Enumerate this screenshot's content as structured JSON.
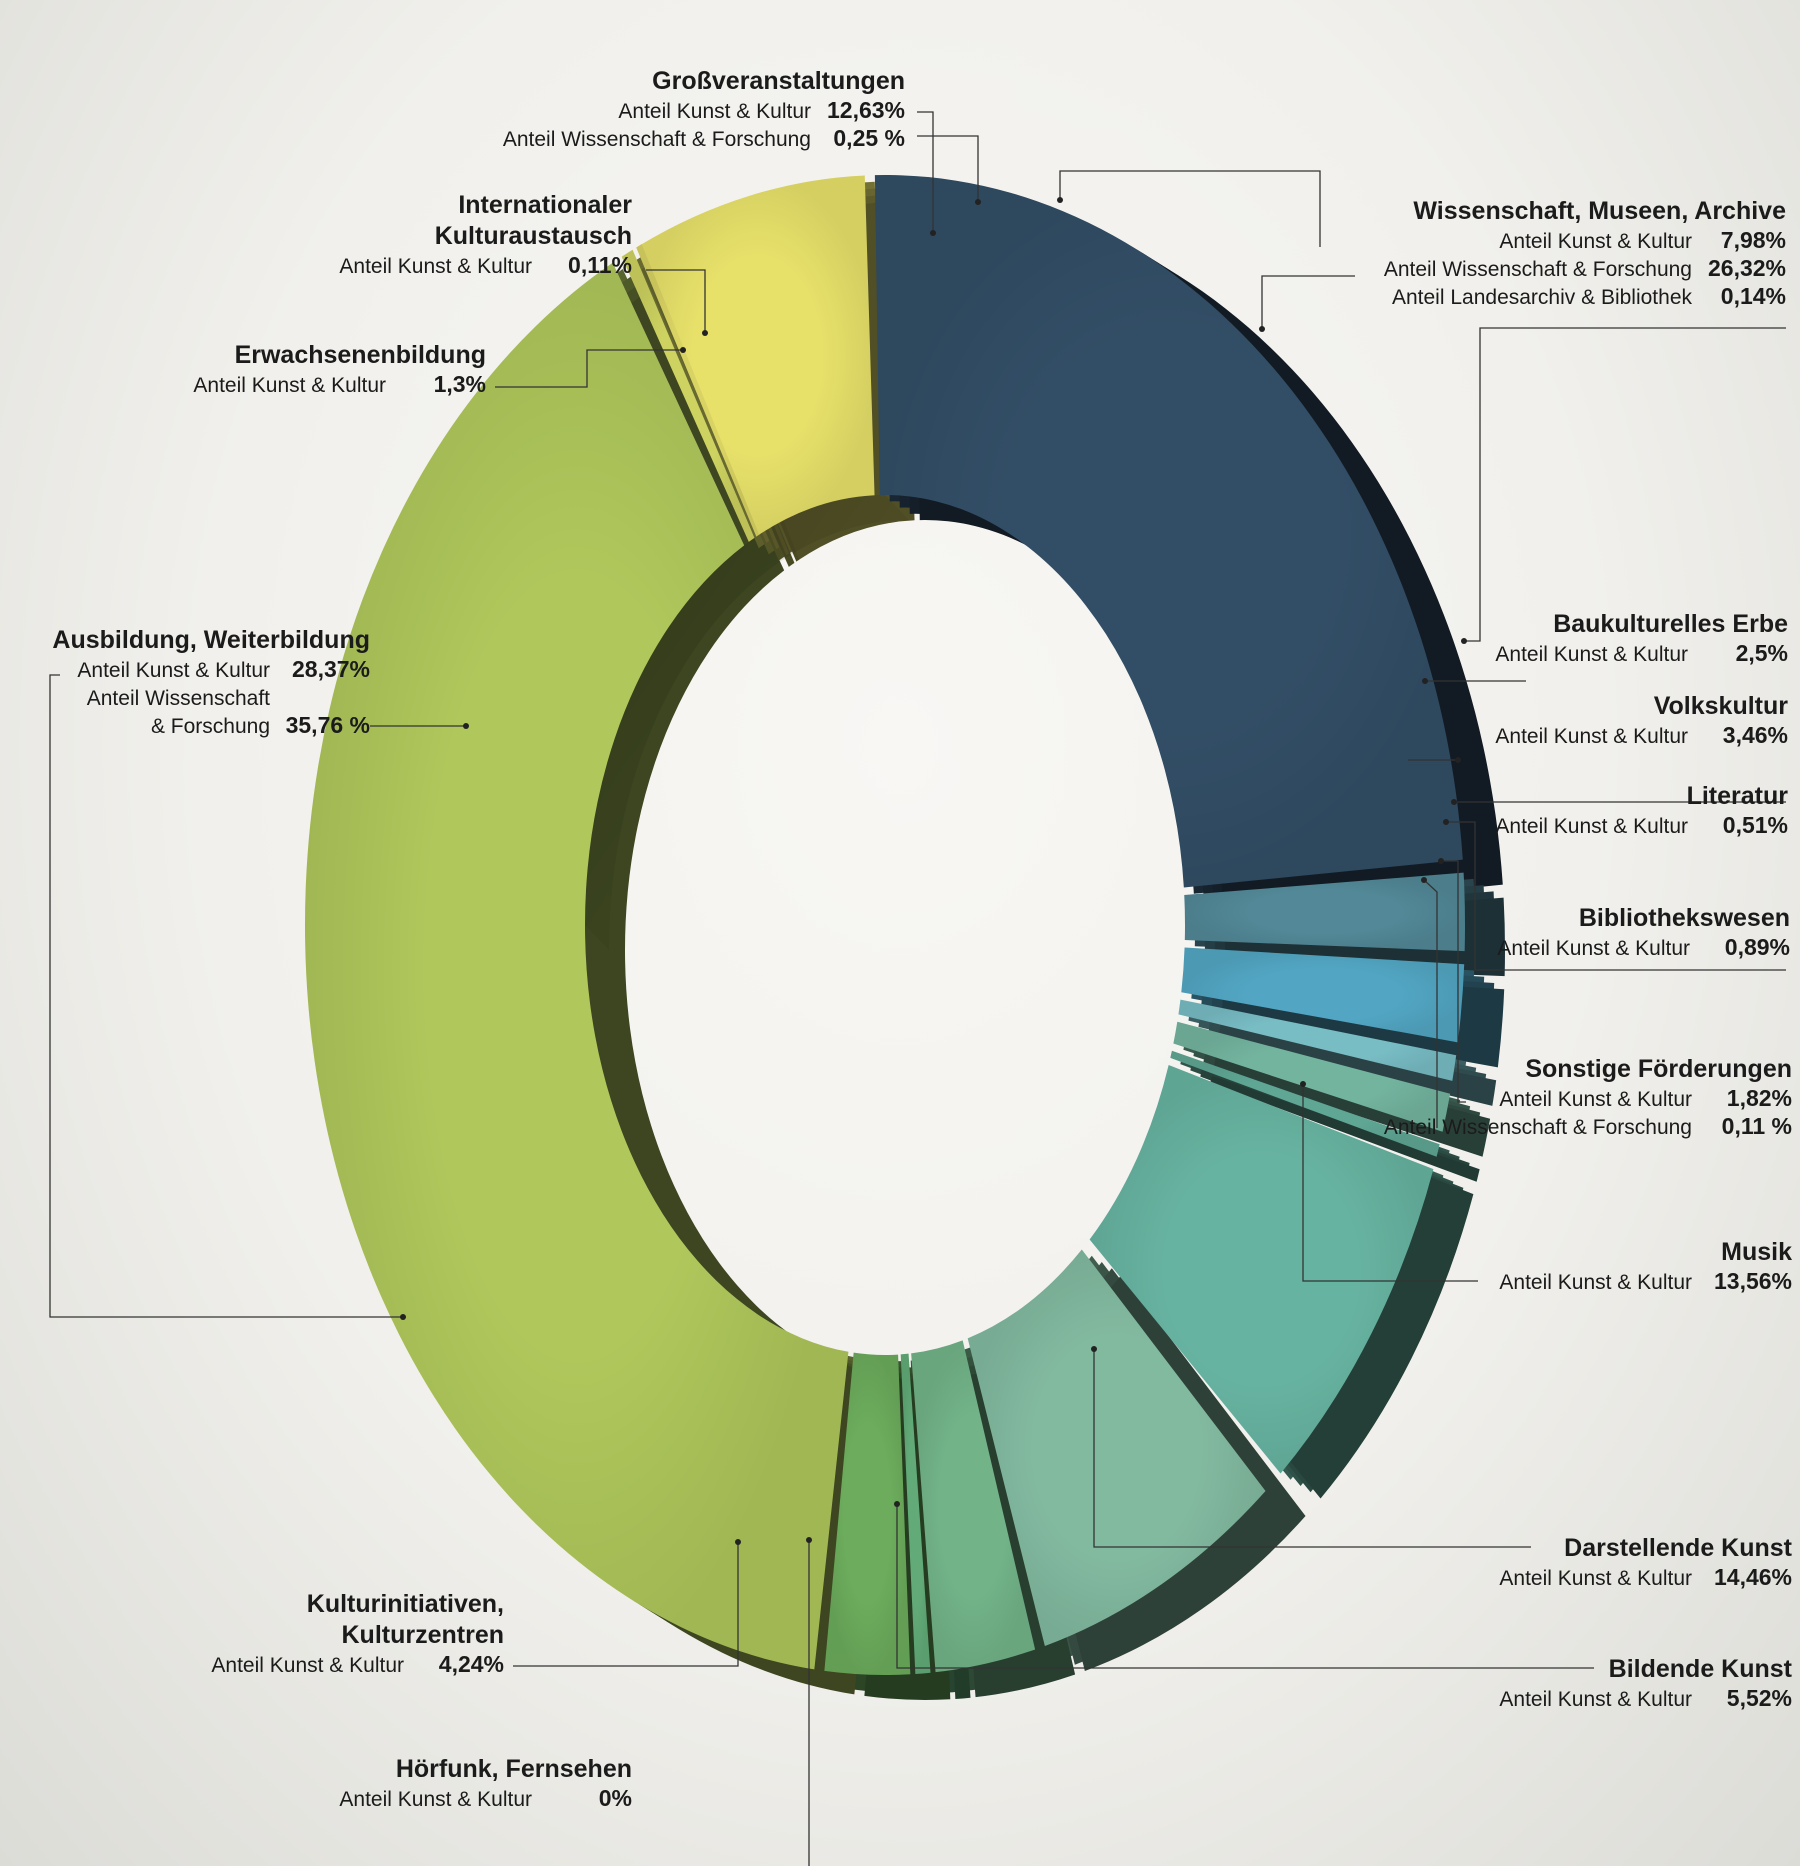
{
  "chart_data": {
    "type": "pie",
    "style": "3d-donut",
    "slices": [
      {
        "id": "grossveranstaltungen",
        "name": "Großveranstaltungen",
        "color": "#e7e16a",
        "values": [
          {
            "label": "Anteil Kunst & Kultur",
            "value": "12,63%"
          },
          {
            "label": "Anteil Wissenschaft & Forschung",
            "value": "0,25 %"
          }
        ]
      },
      {
        "id": "wissenschaft",
        "name": "Wissenschaft, Museen, Archive",
        "color": "#324e66",
        "values": [
          {
            "label": "Anteil Kunst & Kultur",
            "value": "7,98%"
          },
          {
            "label": "Anteil Wissenschaft & Forschung",
            "value": "26,32%"
          },
          {
            "label": "Anteil Landesarchiv & Bibliothek",
            "value": "0,14%"
          }
        ]
      },
      {
        "id": "baukulturelles",
        "name": "Baukulturelles Erbe",
        "color": "#528897",
        "values": [
          {
            "label": "Anteil Kunst & Kultur",
            "value": "2,5%"
          }
        ]
      },
      {
        "id": "volkskultur",
        "name": "Volkskultur",
        "color": "#52a6c3",
        "values": [
          {
            "label": "Anteil Kunst & Kultur",
            "value": "3,46%"
          }
        ]
      },
      {
        "id": "literatur",
        "name": "Literatur",
        "color": "#78bcc4",
        "values": [
          {
            "label": "Anteil Kunst & Kultur",
            "value": "0,51%"
          }
        ]
      },
      {
        "id": "bibliothekswesen",
        "name": "Bibliothekswesen",
        "color": "#73b49f",
        "values": [
          {
            "label": "Anteil Kunst & Kultur",
            "value": "0,89%"
          }
        ]
      },
      {
        "id": "sonstige",
        "name": "Sonstige Förderungen",
        "color": "#5fa694",
        "values": [
          {
            "label": "Anteil Kunst & Kultur",
            "value": "1,82%"
          },
          {
            "label": "Anteil Wissenschaft & Forschung",
            "value": "0,11 %"
          }
        ]
      },
      {
        "id": "musik",
        "name": "Musik",
        "color": "#67b3a1",
        "values": [
          {
            "label": "Anteil Kunst & Kultur",
            "value": "13,56%"
          }
        ]
      },
      {
        "id": "darstellende",
        "name": "Darstellende Kunst",
        "color": "#82baa0",
        "values": [
          {
            "label": "Anteil Kunst & Kultur",
            "value": "14,46%"
          }
        ]
      },
      {
        "id": "bildende",
        "name": "Bildende Kunst",
        "color": "#72b388",
        "values": [
          {
            "label": "Anteil Kunst & Kultur",
            "value": "5,52%"
          }
        ]
      },
      {
        "id": "hoerfunk",
        "name": "Hörfunk, Fernsehen",
        "color": "#62ab78",
        "values": [
          {
            "label": "Anteil Kunst & Kultur",
            "value": "0%"
          }
        ]
      },
      {
        "id": "kulturinitiativen",
        "name": "Kulturinitiativen, Kulturzentren",
        "color": "#6cac5c",
        "values": [
          {
            "label": "Anteil Kunst & Kultur",
            "value": "4,24%"
          }
        ]
      },
      {
        "id": "ausbildung",
        "name": "Ausbildung, Weiterbildung",
        "color": "#afc75b",
        "values": [
          {
            "label": "Anteil Kunst & Kultur",
            "value": "28,37%"
          },
          {
            "label": "Anteil Wissenschaft & Forschung",
            "value": "35,76 %"
          }
        ]
      },
      {
        "id": "erwachsenenbildung",
        "name": "Erwachsenenbildung",
        "color": "#cdd260",
        "values": [
          {
            "label": "Anteil Kunst & Kultur",
            "value": "1,3%"
          }
        ]
      },
      {
        "id": "internationaler",
        "name": "Internationaler Kulturaustausch",
        "color": "#d9d363",
        "values": [
          {
            "label": "Anteil Kunst & Kultur",
            "value": "0,11%"
          }
        ]
      }
    ]
  },
  "labels": {
    "grossveranstaltungen": {
      "title": "Großveranstaltungen",
      "k1": "Anteil Kunst & Kultur",
      "v1": "12,63%",
      "k2": "Anteil Wissenschaft & Forschung",
      "v2": "0,25 %"
    },
    "internationaler": {
      "title1": "Internationaler",
      "title2": "Kulturaustausch",
      "k1": "Anteil Kunst & Kultur",
      "v1": "0,11%"
    },
    "erwachsenenbildung": {
      "title": "Erwachsenenbildung",
      "k1": "Anteil Kunst & Kultur",
      "v1": "1,3%"
    },
    "ausbildung": {
      "title": "Ausbildung, Weiterbildung",
      "k1": "Anteil Kunst & Kultur",
      "v1": "28,37%",
      "k2a": "Anteil Wissenschaft",
      "k2b": "& Forschung",
      "v2": "35,76 %"
    },
    "wissenschaft": {
      "title": "Wissenschaft, Museen, Archive",
      "k1": "Anteil Kunst & Kultur",
      "v1": "7,98%",
      "k2": "Anteil Wissenschaft & Forschung",
      "v2": "26,32%",
      "k3": "Anteil Landesarchiv & Bibliothek",
      "v3": "0,14%"
    },
    "baukulturelles": {
      "title": "Baukulturelles Erbe",
      "k1": "Anteil Kunst & Kultur",
      "v1": "2,5%"
    },
    "volkskultur": {
      "title": "Volkskultur",
      "k1": "Anteil Kunst & Kultur",
      "v1": "3,46%"
    },
    "literatur": {
      "title": "Literatur",
      "k1": "Anteil Kunst & Kultur",
      "v1": "0,51%"
    },
    "bibliothekswesen": {
      "title": "Bibliothekswesen",
      "k1": "Anteil Kunst & Kultur",
      "v1": "0,89%"
    },
    "sonstige": {
      "title": "Sonstige Förderungen",
      "k1": "Anteil Kunst & Kultur",
      "v1": "1,82%",
      "k2": "Anteil Wissenschaft & Forschung",
      "v2": "0,11 %"
    },
    "musik": {
      "title": "Musik",
      "k1": "Anteil Kunst & Kultur",
      "v1": "13,56%"
    },
    "darstellende": {
      "title": "Darstellende Kunst",
      "k1": "Anteil Kunst & Kultur",
      "v1": "14,46%"
    },
    "bildende": {
      "title": "Bildende Kunst",
      "k1": "Anteil Kunst & Kultur",
      "v1": "5,52%"
    },
    "kulturinitiativen": {
      "title1": "Kulturinitiativen,",
      "title2": "Kulturzentren",
      "k1": "Anteil Kunst & Kultur",
      "v1": "4,24%"
    },
    "hoerfunk": {
      "title": "Hörfunk, Fernsehen",
      "k1": "Anteil Kunst & Kultur",
      "v1": "0%"
    }
  }
}
